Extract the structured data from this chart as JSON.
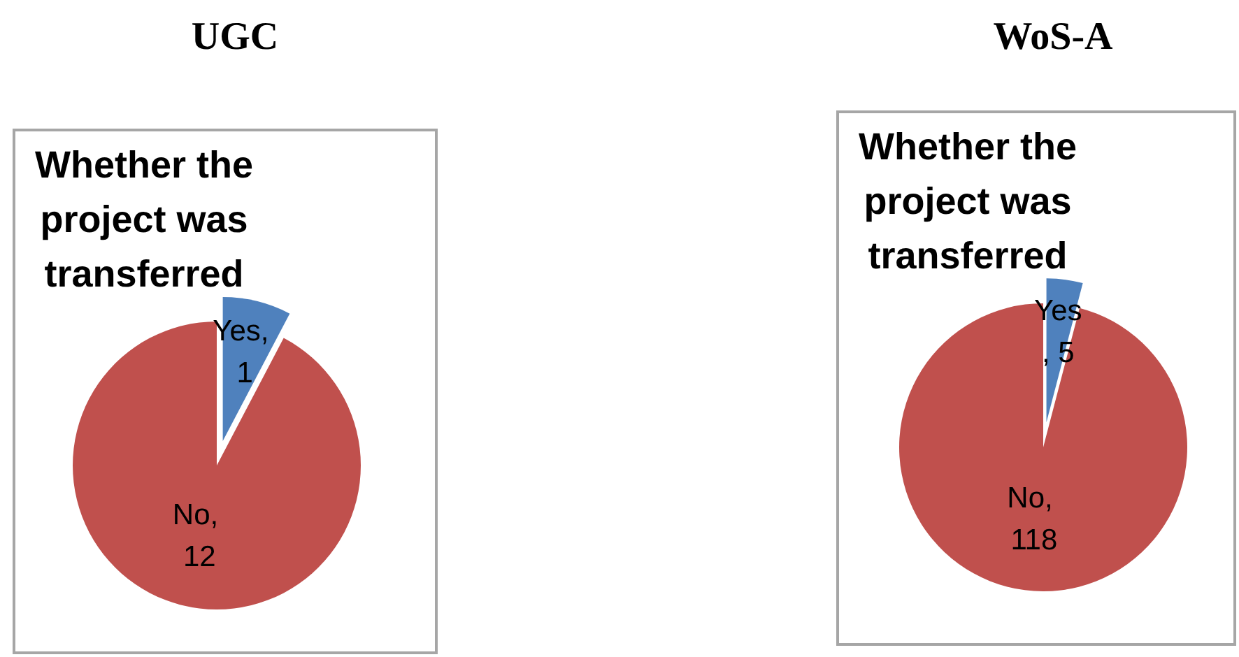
{
  "chart_data": [
    {
      "type": "pie",
      "title": "UGC",
      "subtitle": "Whether the project was transferred",
      "categories": [
        null,
        null
      ],
      "values": [
        1,
        12
      ],
      "colors": [
        "#4f81bd",
        "#c0504d"
      ],
      "value_labels": [
        "Yes, 1",
        "No, 12"
      ]
    },
    {
      "type": "pie",
      "title": "WoS-A",
      "subtitle": "Whether the project was transferred",
      "categories": [
        null,
        null
      ],
      "values": [
        5,
        118
      ],
      "colors": [
        "#4f81bd",
        "#c0504d"
      ],
      "value_labels": [
        "Yes, 5",
        "No, 118"
      ]
    }
  ]
}
